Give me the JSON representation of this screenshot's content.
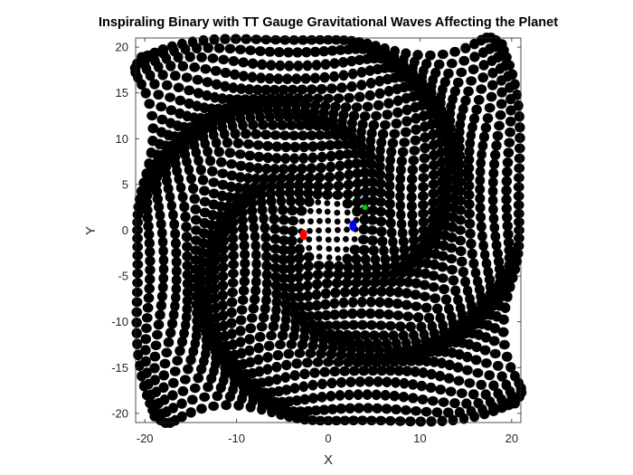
{
  "chart_data": {
    "type": "scatter",
    "title": "Inspiraling Binary with TT Gauge Gravitational Waves Affecting the Planet",
    "xlabel": "X",
    "ylabel": "Y",
    "xlim": [
      -21,
      21
    ],
    "ylim": [
      -21,
      21
    ],
    "xticks": [
      -20,
      -10,
      0,
      10,
      20
    ],
    "yticks": [
      -20,
      -15,
      -10,
      -5,
      0,
      5,
      10,
      15,
      20
    ],
    "xtick_labels": [
      "-20",
      "-10",
      "0",
      "10",
      "20"
    ],
    "ytick_labels": [
      "-20",
      "-15",
      "-10",
      "-5",
      "0",
      "5",
      "10",
      "15",
      "20"
    ],
    "grid": false,
    "legend": "none",
    "lattice": {
      "description_of_data": "black test particles on a square lattice deformed by a spiral wave pattern",
      "range": [
        -20,
        20
      ],
      "step": 1,
      "color": "#000000",
      "wave_amplitude": 0.4,
      "wave_wavelength": 10,
      "exclude_near_center_radius": 0
    },
    "special_points": [
      {
        "x": -2.7,
        "y": -0.5,
        "color": "#ff0000",
        "role": "binary body 1"
      },
      {
        "x": 2.7,
        "y": 0.5,
        "color": "#0000ff",
        "role": "binary body 2"
      },
      {
        "x": 4.0,
        "y": 2.5,
        "color": "#00cc00",
        "role": "planet"
      }
    ]
  }
}
